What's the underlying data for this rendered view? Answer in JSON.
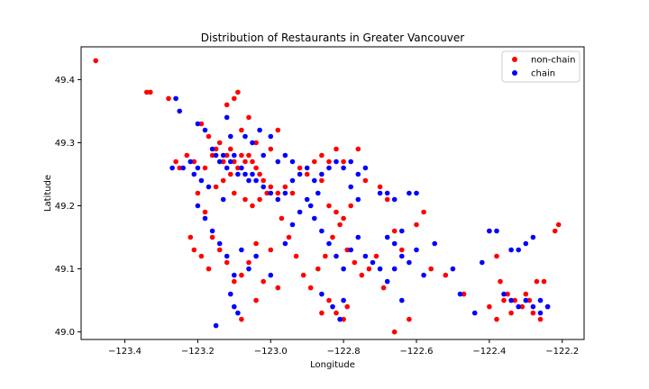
{
  "chart_data": {
    "type": "scatter",
    "title": "Distribution of Restaurants in Greater Vancouver",
    "xlabel": "Longitude",
    "ylabel": "Latitude",
    "xlim": [
      -123.52,
      -122.14
    ],
    "ylim": [
      48.988,
      49.452
    ],
    "xticks": [
      -123.4,
      -123.2,
      -123.0,
      -122.8,
      -122.6,
      -122.4,
      -122.2
    ],
    "xtick_labels": [
      "−123.4",
      "−123.2",
      "−123.0",
      "−122.8",
      "−122.6",
      "−122.4",
      "−122.2"
    ],
    "yticks": [
      49.0,
      49.1,
      49.2,
      49.3,
      49.4
    ],
    "ytick_labels": [
      "49.0",
      "49.1",
      "49.2",
      "49.3",
      "49.4"
    ],
    "grid": false,
    "legend_position": "top-right",
    "series": [
      {
        "name": "non-chain",
        "color": "#ff0000",
        "points": [
          [
            -123.48,
            49.43
          ],
          [
            -123.34,
            49.38
          ],
          [
            -123.33,
            49.38
          ],
          [
            -123.28,
            49.37
          ],
          [
            -123.26,
            49.27
          ],
          [
            -123.25,
            49.26
          ],
          [
            -123.23,
            49.28
          ],
          [
            -123.21,
            49.27
          ],
          [
            -123.19,
            49.33
          ],
          [
            -123.18,
            49.26
          ],
          [
            -123.17,
            49.31
          ],
          [
            -123.16,
            49.28
          ],
          [
            -123.15,
            49.29
          ],
          [
            -123.14,
            49.3
          ],
          [
            -123.13,
            49.27
          ],
          [
            -123.12,
            49.28
          ],
          [
            -123.11,
            49.29
          ],
          [
            -123.1,
            49.27
          ],
          [
            -123.09,
            49.26
          ],
          [
            -123.08,
            49.28
          ],
          [
            -123.07,
            49.27
          ],
          [
            -123.06,
            49.28
          ],
          [
            -123.05,
            49.27
          ],
          [
            -123.04,
            49.26
          ],
          [
            -123.03,
            49.25
          ],
          [
            -123.02,
            49.24
          ],
          [
            -123.0,
            49.23
          ],
          [
            -122.98,
            49.22
          ],
          [
            -122.96,
            49.23
          ],
          [
            -122.94,
            49.22
          ],
          [
            -122.92,
            49.26
          ],
          [
            -122.9,
            49.25
          ],
          [
            -122.88,
            49.27
          ],
          [
            -122.86,
            49.24
          ],
          [
            -122.84,
            49.2
          ],
          [
            -122.82,
            49.19
          ],
          [
            -122.8,
            49.18
          ],
          [
            -122.78,
            49.2
          ],
          [
            -122.76,
            49.29
          ],
          [
            -122.74,
            49.24
          ],
          [
            -122.7,
            49.23
          ],
          [
            -122.68,
            49.21
          ],
          [
            -122.66,
            49.16
          ],
          [
            -122.64,
            49.13
          ],
          [
            -122.6,
            49.17
          ],
          [
            -122.58,
            49.19
          ],
          [
            -122.56,
            49.1
          ],
          [
            -122.52,
            49.09
          ],
          [
            -122.47,
            49.06
          ],
          [
            -122.4,
            49.16
          ],
          [
            -122.38,
            49.12
          ],
          [
            -122.37,
            49.08
          ],
          [
            -122.35,
            49.06
          ],
          [
            -122.33,
            49.05
          ],
          [
            -122.31,
            49.04
          ],
          [
            -122.29,
            49.05
          ],
          [
            -122.27,
            49.08
          ],
          [
            -122.24,
            49.04
          ],
          [
            -122.22,
            49.16
          ],
          [
            -122.21,
            49.17
          ],
          [
            -123.2,
            49.22
          ],
          [
            -123.18,
            49.19
          ],
          [
            -123.16,
            49.15
          ],
          [
            -123.14,
            49.13
          ],
          [
            -123.12,
            49.11
          ],
          [
            -123.1,
            49.08
          ],
          [
            -123.08,
            49.09
          ],
          [
            -123.06,
            49.11
          ],
          [
            -123.04,
            49.14
          ],
          [
            -123.02,
            49.08
          ],
          [
            -123.0,
            49.13
          ],
          [
            -122.97,
            49.18
          ],
          [
            -122.95,
            49.15
          ],
          [
            -122.93,
            49.12
          ],
          [
            -122.91,
            49.09
          ],
          [
            -122.89,
            49.07
          ],
          [
            -122.87,
            49.1
          ],
          [
            -122.85,
            49.12
          ],
          [
            -122.83,
            49.15
          ],
          [
            -122.81,
            49.17
          ],
          [
            -122.79,
            49.13
          ],
          [
            -122.77,
            49.11
          ],
          [
            -122.75,
            49.09
          ],
          [
            -122.73,
            49.1
          ],
          [
            -122.71,
            49.12
          ],
          [
            -122.69,
            49.07
          ],
          [
            -122.66,
            49.0
          ],
          [
            -122.62,
            49.02
          ],
          [
            -122.8,
            49.02
          ],
          [
            -122.79,
            49.04
          ],
          [
            -122.82,
            49.03
          ],
          [
            -122.84,
            49.05
          ],
          [
            -123.21,
            49.13
          ],
          [
            -123.19,
            49.12
          ],
          [
            -123.17,
            49.1
          ],
          [
            -123.22,
            49.15
          ],
          [
            -123.08,
            49.32
          ],
          [
            -123.06,
            49.34
          ],
          [
            -123.04,
            49.3
          ],
          [
            -123.1,
            49.37
          ],
          [
            -123.12,
            49.36
          ],
          [
            -123.09,
            49.38
          ],
          [
            -123.0,
            49.29
          ],
          [
            -122.98,
            49.32
          ],
          [
            -123.11,
            49.25
          ],
          [
            -123.13,
            49.24
          ],
          [
            -123.15,
            49.23
          ],
          [
            -123.1,
            49.22
          ],
          [
            -123.07,
            49.21
          ],
          [
            -123.05,
            49.2
          ],
          [
            -123.03,
            49.21
          ],
          [
            -123.01,
            49.22
          ],
          [
            -122.86,
            49.28
          ],
          [
            -122.84,
            49.27
          ],
          [
            -122.82,
            49.29
          ],
          [
            -122.8,
            49.27
          ],
          [
            -122.4,
            49.04
          ],
          [
            -122.38,
            49.02
          ],
          [
            -122.36,
            49.05
          ],
          [
            -122.34,
            49.03
          ],
          [
            -122.3,
            49.06
          ],
          [
            -122.28,
            49.03
          ],
          [
            -122.26,
            49.02
          ],
          [
            -122.25,
            49.08
          ],
          [
            -122.98,
            49.07
          ],
          [
            -122.86,
            49.03
          ],
          [
            -123.08,
            49.02
          ],
          [
            -123.04,
            49.05
          ]
        ]
      },
      {
        "name": "chain",
        "color": "#0000ff",
        "points": [
          [
            -123.26,
            49.37
          ],
          [
            -123.25,
            49.35
          ],
          [
            -123.2,
            49.33
          ],
          [
            -123.18,
            49.32
          ],
          [
            -123.16,
            49.29
          ],
          [
            -123.15,
            49.28
          ],
          [
            -123.14,
            49.27
          ],
          [
            -123.13,
            49.28
          ],
          [
            -123.12,
            49.26
          ],
          [
            -123.11,
            49.27
          ],
          [
            -123.1,
            49.28
          ],
          [
            -123.09,
            49.25
          ],
          [
            -123.08,
            49.26
          ],
          [
            -123.07,
            49.25
          ],
          [
            -123.06,
            49.24
          ],
          [
            -123.05,
            49.25
          ],
          [
            -123.04,
            49.24
          ],
          [
            -123.02,
            49.23
          ],
          [
            -123.0,
            49.22
          ],
          [
            -122.98,
            49.21
          ],
          [
            -122.96,
            49.22
          ],
          [
            -122.94,
            49.24
          ],
          [
            -122.92,
            49.25
          ],
          [
            -122.9,
            49.26
          ],
          [
            -122.88,
            49.24
          ],
          [
            -122.86,
            49.25
          ],
          [
            -122.84,
            49.26
          ],
          [
            -122.82,
            49.27
          ],
          [
            -122.8,
            49.26
          ],
          [
            -122.78,
            49.27
          ],
          [
            -122.76,
            49.25
          ],
          [
            -122.74,
            49.26
          ],
          [
            -122.7,
            49.22
          ],
          [
            -122.68,
            49.22
          ],
          [
            -122.66,
            49.21
          ],
          [
            -122.62,
            49.22
          ],
          [
            -122.6,
            49.22
          ],
          [
            -122.68,
            49.15
          ],
          [
            -122.66,
            49.14
          ],
          [
            -122.64,
            49.12
          ],
          [
            -122.62,
            49.11
          ],
          [
            -122.6,
            49.13
          ],
          [
            -122.58,
            49.09
          ],
          [
            -122.55,
            49.14
          ],
          [
            -122.5,
            49.1
          ],
          [
            -122.48,
            49.06
          ],
          [
            -122.4,
            49.16
          ],
          [
            -122.34,
            49.13
          ],
          [
            -122.32,
            49.13
          ],
          [
            -122.3,
            49.14
          ],
          [
            -122.28,
            49.15
          ],
          [
            -122.36,
            49.06
          ],
          [
            -122.34,
            49.05
          ],
          [
            -122.32,
            49.04
          ],
          [
            -122.3,
            49.05
          ],
          [
            -122.28,
            49.04
          ],
          [
            -122.26,
            49.03
          ],
          [
            -122.24,
            49.04
          ],
          [
            -123.2,
            49.2
          ],
          [
            -123.18,
            49.18
          ],
          [
            -123.16,
            49.16
          ],
          [
            -123.14,
            49.14
          ],
          [
            -123.12,
            49.12
          ],
          [
            -123.1,
            49.09
          ],
          [
            -123.08,
            49.13
          ],
          [
            -123.06,
            49.1
          ],
          [
            -123.04,
            49.12
          ],
          [
            -123.0,
            49.09
          ],
          [
            -122.96,
            49.14
          ],
          [
            -122.94,
            49.17
          ],
          [
            -122.92,
            49.19
          ],
          [
            -122.9,
            49.21
          ],
          [
            -122.88,
            49.18
          ],
          [
            -122.86,
            49.16
          ],
          [
            -122.84,
            49.14
          ],
          [
            -122.82,
            49.12
          ],
          [
            -122.8,
            49.1
          ],
          [
            -122.78,
            49.13
          ],
          [
            -122.76,
            49.15
          ],
          [
            -122.74,
            49.12
          ],
          [
            -122.72,
            49.11
          ],
          [
            -122.7,
            49.1
          ],
          [
            -122.8,
            49.05
          ],
          [
            -122.81,
            49.02
          ],
          [
            -122.83,
            49.04
          ],
          [
            -122.86,
            49.06
          ],
          [
            -123.15,
            49.01
          ],
          [
            -123.1,
            49.04
          ],
          [
            -123.09,
            49.03
          ],
          [
            -123.11,
            49.06
          ],
          [
            -123.05,
            49.3
          ],
          [
            -123.03,
            49.32
          ],
          [
            -123.12,
            49.34
          ],
          [
            -123.11,
            49.31
          ],
          [
            -123.07,
            49.31
          ],
          [
            -123.0,
            49.31
          ],
          [
            -122.96,
            49.28
          ],
          [
            -122.94,
            49.27
          ],
          [
            -122.98,
            49.27
          ],
          [
            -123.02,
            49.28
          ],
          [
            -123.17,
            49.23
          ],
          [
            -123.19,
            49.24
          ],
          [
            -123.21,
            49.25
          ],
          [
            -123.13,
            49.21
          ],
          [
            -122.87,
            49.22
          ],
          [
            -122.89,
            49.2
          ],
          [
            -122.78,
            49.23
          ],
          [
            -122.76,
            49.21
          ],
          [
            -122.64,
            49.16
          ],
          [
            -122.66,
            49.1
          ],
          [
            -122.68,
            49.08
          ],
          [
            -122.64,
            49.05
          ],
          [
            -122.44,
            49.03
          ],
          [
            -122.42,
            49.11
          ],
          [
            -122.38,
            49.16
          ],
          [
            -122.26,
            49.05
          ],
          [
            -123.27,
            49.26
          ],
          [
            -123.24,
            49.26
          ],
          [
            -123.22,
            49.27
          ],
          [
            -123.2,
            49.26
          ]
        ]
      }
    ]
  }
}
